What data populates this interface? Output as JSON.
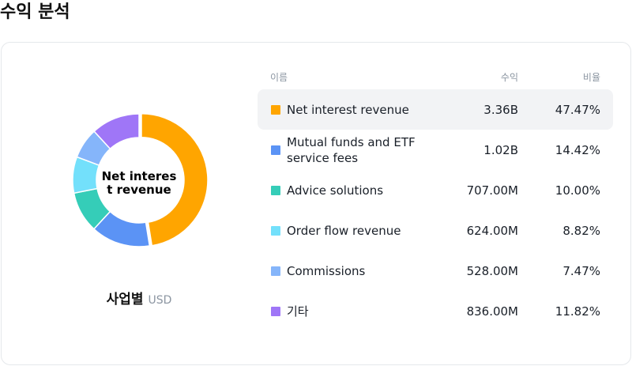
{
  "page": {
    "title": "수익 분석"
  },
  "chart": {
    "center_label": "Net interest revenue",
    "caption": "사업별",
    "currency": "USD"
  },
  "table": {
    "headers": {
      "name": "이름",
      "revenue": "수익",
      "ratio": "비율"
    },
    "rows": [
      {
        "name": "Net interest revenue",
        "revenue": "3.36B",
        "ratio": "47.47%",
        "color": "#ffa500"
      },
      {
        "name": "Mutual funds and ETF service fees",
        "revenue": "1.02B",
        "ratio": "14.42%",
        "color": "#5b93f5"
      },
      {
        "name": "Advice solutions",
        "revenue": "707.00M",
        "ratio": "10.00%",
        "color": "#35cdb8"
      },
      {
        "name": "Order flow revenue",
        "revenue": "624.00M",
        "ratio": "8.82%",
        "color": "#73e0fb"
      },
      {
        "name": "Commissions",
        "revenue": "528.00M",
        "ratio": "7.47%",
        "color": "#85b5fa"
      },
      {
        "name": "기타",
        "revenue": "836.00M",
        "ratio": "11.82%",
        "color": "#9f76f7"
      }
    ]
  },
  "chart_data": {
    "type": "pie",
    "categories": [
      "Net interest revenue",
      "Mutual funds and ETF service fees",
      "Advice solutions",
      "Order flow revenue",
      "Commissions",
      "기타"
    ],
    "values": [
      47.47,
      14.42,
      10.0,
      8.82,
      7.47,
      11.82
    ],
    "colors": [
      "#ffa500",
      "#5b93f5",
      "#35cdb8",
      "#73e0fb",
      "#85b5fa",
      "#9f76f7"
    ],
    "highlighted": "Net interest revenue"
  }
}
